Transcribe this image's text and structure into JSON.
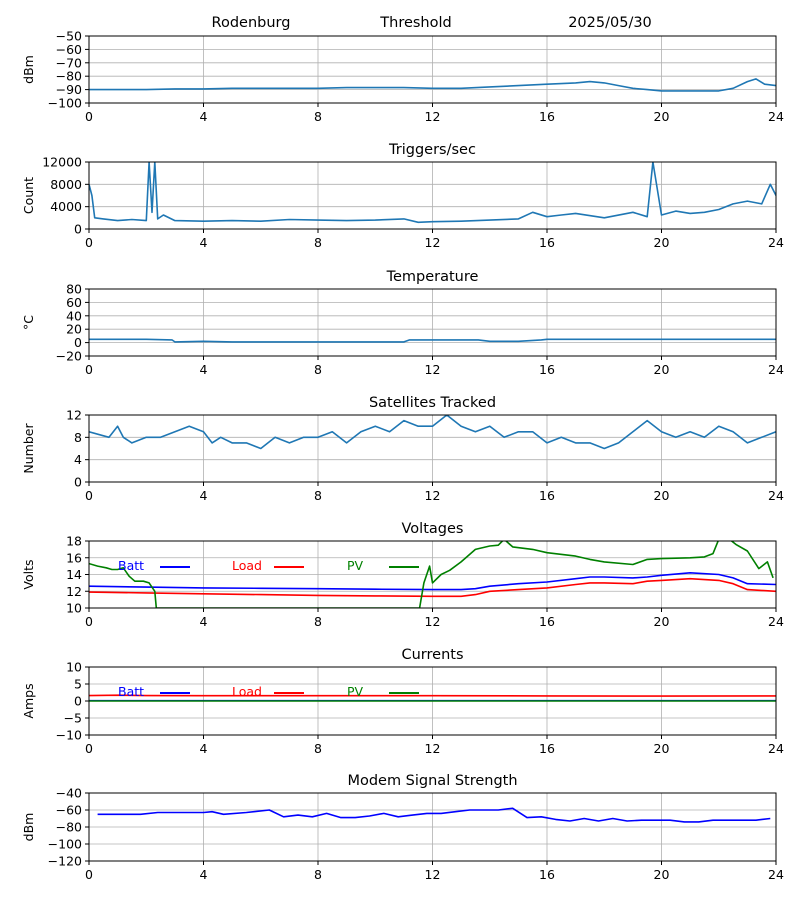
{
  "header": {
    "site": "Rodenburg",
    "mode": "Threshold",
    "date": "2025/05/30"
  },
  "colors": {
    "default": "#1f77b4",
    "batt": "#0000ff",
    "load": "#ff0000",
    "pv": "#008000",
    "grid": "#b0b0b0"
  },
  "chart_data": [
    {
      "type": "line",
      "title": "",
      "ylabel": "dBm",
      "xlim": [
        0,
        24
      ],
      "ylim": [
        -100,
        -50
      ],
      "xticks": [
        0,
        4,
        8,
        12,
        16,
        20,
        24
      ],
      "yticks": [
        -100,
        -90,
        -80,
        -70,
        -60,
        -50
      ],
      "ytick_labels": [
        "−100",
        "−90",
        "−80",
        "−70",
        "−60",
        "−50"
      ],
      "grid": true,
      "series": [
        {
          "color": "#1f77b4",
          "x": [
            0,
            1,
            2,
            3,
            4,
            5,
            6,
            7,
            8,
            9,
            10,
            11,
            12,
            13,
            14,
            15,
            16,
            16.5,
            17,
            17.5,
            18,
            18.5,
            19,
            19.5,
            20,
            21,
            22,
            22.5,
            23,
            23.3,
            23.6,
            24
          ],
          "y": [
            -90,
            -90,
            -90,
            -89.5,
            -89.5,
            -89,
            -89,
            -89,
            -89,
            -88.5,
            -88.5,
            -88.5,
            -89,
            -89,
            -88,
            -87,
            -86,
            -85.5,
            -85,
            -84,
            -85,
            -87,
            -89,
            -90,
            -91,
            -91,
            -91,
            -89,
            -84,
            -82,
            -86,
            -87
          ]
        }
      ]
    },
    {
      "type": "line",
      "title": "Triggers/sec",
      "ylabel": "Count",
      "xlim": [
        0,
        24
      ],
      "ylim": [
        0,
        12000
      ],
      "xticks": [
        0,
        4,
        8,
        12,
        16,
        20,
        24
      ],
      "yticks": [
        0,
        4000,
        8000,
        12000
      ],
      "ytick_labels": [
        "0",
        "4000",
        "8000",
        "12000"
      ],
      "grid": true,
      "series": [
        {
          "color": "#1f77b4",
          "x": [
            0,
            0.1,
            0.2,
            0.5,
            1,
            1.5,
            2,
            2.1,
            2.2,
            2.3,
            2.4,
            2.6,
            3,
            4,
            5,
            6,
            7,
            8,
            9,
            10,
            11,
            11.5,
            12,
            13,
            14,
            15,
            15.5,
            16,
            16.5,
            17,
            18,
            19,
            19.5,
            19.7,
            20,
            20.5,
            21,
            21.5,
            22,
            22.5,
            23,
            23.5,
            23.8,
            24
          ],
          "y": [
            8000,
            6000,
            2000,
            1800,
            1500,
            1700,
            1500,
            12000,
            3000,
            12000,
            1800,
            2500,
            1500,
            1400,
            1500,
            1400,
            1700,
            1600,
            1500,
            1600,
            1800,
            1200,
            1300,
            1400,
            1600,
            1800,
            3000,
            2200,
            2500,
            2800,
            2000,
            3000,
            2200,
            12000,
            2500,
            3200,
            2800,
            3000,
            3500,
            4500,
            5000,
            4500,
            8000,
            6000
          ]
        }
      ]
    },
    {
      "type": "line",
      "title": "Temperature",
      "ylabel": "°C",
      "xlim": [
        0,
        24
      ],
      "ylim": [
        -20,
        80
      ],
      "xticks": [
        0,
        4,
        8,
        12,
        16,
        20,
        24
      ],
      "yticks": [
        -20,
        0,
        20,
        40,
        60,
        80
      ],
      "ytick_labels": [
        "−20",
        "0",
        "20",
        "40",
        "60",
        "80"
      ],
      "grid": true,
      "series": [
        {
          "color": "#1f77b4",
          "x": [
            0,
            2,
            2.9,
            3.0,
            4,
            5,
            6,
            7,
            8,
            9,
            10,
            11,
            11.2,
            12,
            13,
            13.6,
            14,
            15,
            15.8,
            16,
            20,
            24
          ],
          "y": [
            5,
            5,
            4,
            1,
            2,
            1,
            1,
            1,
            1,
            1,
            1,
            1,
            4,
            4,
            4,
            4,
            2,
            2,
            4,
            5,
            5,
            5
          ]
        }
      ]
    },
    {
      "type": "line",
      "title": "Satellites Tracked",
      "ylabel": "Number",
      "xlim": [
        0,
        24
      ],
      "ylim": [
        0,
        12
      ],
      "xticks": [
        0,
        4,
        8,
        12,
        16,
        20,
        24
      ],
      "yticks": [
        0,
        4,
        8,
        12
      ],
      "ytick_labels": [
        "0",
        "4",
        "8",
        "12"
      ],
      "grid": true,
      "series": [
        {
          "color": "#1f77b4",
          "x": [
            0,
            0.7,
            1,
            1.2,
            1.5,
            2,
            2.5,
            3,
            3.5,
            4,
            4.3,
            4.6,
            5,
            5.5,
            6,
            6.5,
            7,
            7.5,
            8,
            8.5,
            9,
            9.5,
            10,
            10.5,
            11,
            11.5,
            12,
            12.5,
            13,
            13.5,
            14,
            14.5,
            15,
            15.5,
            16,
            16.5,
            17,
            17.5,
            18,
            18.5,
            19,
            19.5,
            20,
            20.5,
            21,
            21.5,
            22,
            22.5,
            23,
            23.5,
            24
          ],
          "y": [
            9,
            8,
            10,
            8,
            7,
            8,
            8,
            9,
            10,
            9,
            7,
            8,
            7,
            7,
            6,
            8,
            7,
            8,
            8,
            9,
            7,
            9,
            10,
            9,
            11,
            10,
            10,
            12,
            10,
            9,
            10,
            8,
            9,
            9,
            7,
            8,
            7,
            7,
            6,
            7,
            9,
            11,
            9,
            8,
            9,
            8,
            10,
            9,
            7,
            8,
            9
          ]
        }
      ]
    },
    {
      "type": "line",
      "title": "Voltages",
      "ylabel": "Volts",
      "xlim": [
        0,
        24
      ],
      "ylim": [
        10,
        18
      ],
      "xticks": [
        0,
        4,
        8,
        12,
        16,
        20,
        24
      ],
      "yticks": [
        10,
        12,
        14,
        16,
        18
      ],
      "ytick_labels": [
        "10",
        "12",
        "14",
        "16",
        "18"
      ],
      "grid": true,
      "legend": {
        "placement": "top-left",
        "entries": [
          "Batt",
          "Load",
          "PV"
        ]
      },
      "series": [
        {
          "name": "Batt",
          "color": "#0000ff",
          "x": [
            0,
            2,
            4,
            6,
            8,
            10,
            12,
            13,
            13.5,
            14,
            15,
            16,
            17,
            17.5,
            18,
            19,
            19.5,
            20,
            21,
            22,
            22.5,
            23,
            24
          ],
          "y": [
            12.6,
            12.5,
            12.4,
            12.35,
            12.3,
            12.25,
            12.2,
            12.2,
            12.3,
            12.6,
            12.9,
            13.1,
            13.5,
            13.7,
            13.7,
            13.6,
            13.7,
            13.9,
            14.2,
            14.0,
            13.6,
            12.9,
            12.8
          ]
        },
        {
          "name": "Load",
          "color": "#ff0000",
          "x": [
            0,
            2,
            4,
            6,
            8,
            10,
            12,
            13,
            13.5,
            14,
            15,
            16,
            17,
            17.5,
            18,
            19,
            19.5,
            20,
            21,
            22,
            22.5,
            23,
            24
          ],
          "y": [
            11.9,
            11.8,
            11.7,
            11.6,
            11.5,
            11.45,
            11.4,
            11.4,
            11.6,
            12.0,
            12.2,
            12.4,
            12.8,
            13.0,
            13.0,
            12.9,
            13.2,
            13.3,
            13.5,
            13.3,
            12.9,
            12.2,
            12.0
          ]
        },
        {
          "name": "PV",
          "color": "#008000",
          "x": [
            0,
            0.3,
            0.6,
            0.8,
            1,
            1.2,
            1.4,
            1.6,
            1.9,
            2.1,
            2.3,
            2.35,
            11.55,
            11.7,
            11.9,
            12.0,
            12.3,
            12.6,
            13,
            13.5,
            14,
            14.3,
            14.5,
            14.8,
            15.5,
            16,
            17,
            17.5,
            18,
            19,
            19.5,
            20,
            21,
            21.5,
            21.8,
            22,
            22.3,
            22.6,
            23,
            23.4,
            23.7,
            23.9
          ],
          "y": [
            15.3,
            15.0,
            14.8,
            14.6,
            14.6,
            14.8,
            13.8,
            13.2,
            13.2,
            13.0,
            12.0,
            10,
            10,
            13.0,
            15.0,
            13.0,
            14.0,
            14.5,
            15.5,
            17.0,
            17.4,
            17.5,
            18.2,
            17.3,
            17.0,
            16.6,
            16.2,
            15.8,
            15.5,
            15.2,
            15.8,
            15.9,
            16.0,
            16.1,
            16.5,
            18.2,
            18.4,
            17.6,
            16.8,
            14.7,
            15.5,
            13.6
          ]
        }
      ]
    },
    {
      "type": "line",
      "title": "Currents",
      "ylabel": "Amps",
      "xlim": [
        0,
        24
      ],
      "ylim": [
        -10,
        10
      ],
      "xticks": [
        0,
        4,
        8,
        12,
        16,
        20,
        24
      ],
      "yticks": [
        -10,
        -5,
        0,
        5,
        10
      ],
      "ytick_labels": [
        "−10",
        "−5",
        "0",
        "5",
        "10"
      ],
      "grid": true,
      "legend": {
        "placement": "top-left",
        "entries": [
          "Batt",
          "Load",
          "PV"
        ]
      },
      "series": [
        {
          "name": "Batt",
          "color": "#0000ff",
          "x": [
            0,
            24
          ],
          "y": [
            0.1,
            0.1
          ]
        },
        {
          "name": "Load",
          "color": "#ff0000",
          "x": [
            0,
            1,
            2,
            4,
            8,
            12,
            16,
            20,
            24
          ],
          "y": [
            1.6,
            1.7,
            1.6,
            1.55,
            1.55,
            1.55,
            1.5,
            1.45,
            1.5
          ]
        },
        {
          "name": "PV",
          "color": "#008000",
          "x": [
            0,
            24
          ],
          "y": [
            0,
            0
          ]
        }
      ]
    },
    {
      "type": "line",
      "title": "Modem Signal Strength",
      "ylabel": "dBm",
      "xlim": [
        0,
        24
      ],
      "ylim": [
        -120,
        -40
      ],
      "xticks": [
        0,
        4,
        8,
        12,
        16,
        20,
        24
      ],
      "yticks": [
        -120,
        -100,
        -80,
        -60,
        -40
      ],
      "ytick_labels": [
        "−120",
        "−100",
        "−80",
        "−60",
        "−40"
      ],
      "grid": true,
      "series": [
        {
          "name": "",
          "color": "#0000ff",
          "x": [
            0.3,
            1,
            1.8,
            2.4,
            3.3,
            4,
            4.3,
            4.7,
            5.5,
            6.3,
            6.8,
            7.3,
            7.8,
            8.3,
            8.8,
            9.3,
            9.8,
            10.3,
            10.8,
            11.3,
            11.8,
            12.3,
            12.8,
            13.3,
            13.8,
            14.3,
            14.8,
            15.3,
            15.8,
            16.3,
            16.8,
            17.3,
            17.8,
            18.3,
            18.8,
            19.3,
            19.8,
            20.3,
            20.8,
            21.3,
            21.8,
            22.3,
            22.8,
            23.3,
            23.8
          ],
          "y": [
            -65,
            -65,
            -65,
            -63,
            -63,
            -63,
            -62,
            -65,
            -63,
            -60,
            -68,
            -66,
            -68,
            -64,
            -69,
            -69,
            -67,
            -64,
            -68,
            -66,
            -64,
            -64,
            -62,
            -60,
            -60,
            -60,
            -58,
            -69,
            -68,
            -71,
            -73,
            -70,
            -73,
            -70,
            -73,
            -72,
            -72,
            -72,
            -74,
            -74,
            -72,
            -72,
            -72,
            -72,
            -70
          ]
        }
      ]
    }
  ]
}
